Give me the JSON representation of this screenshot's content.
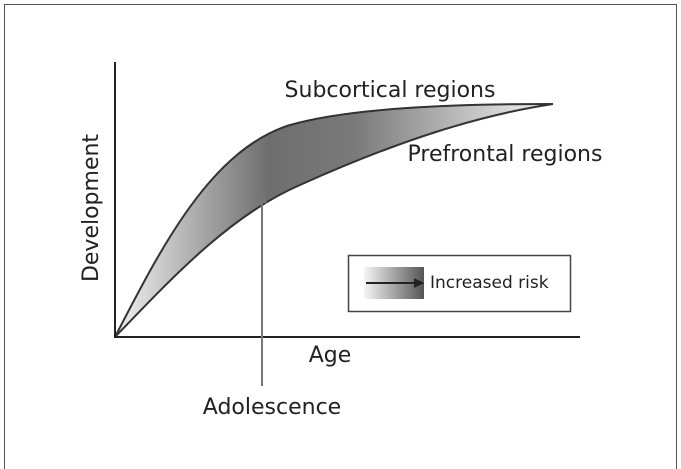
{
  "axes": {
    "x_label": "Age",
    "y_label": "Development"
  },
  "curves": [
    {
      "label": "Subcortical regions"
    },
    {
      "label": "Prefrontal regions"
    }
  ],
  "annotation": "Adolescence",
  "legend": {
    "label": "Increased risk"
  }
}
